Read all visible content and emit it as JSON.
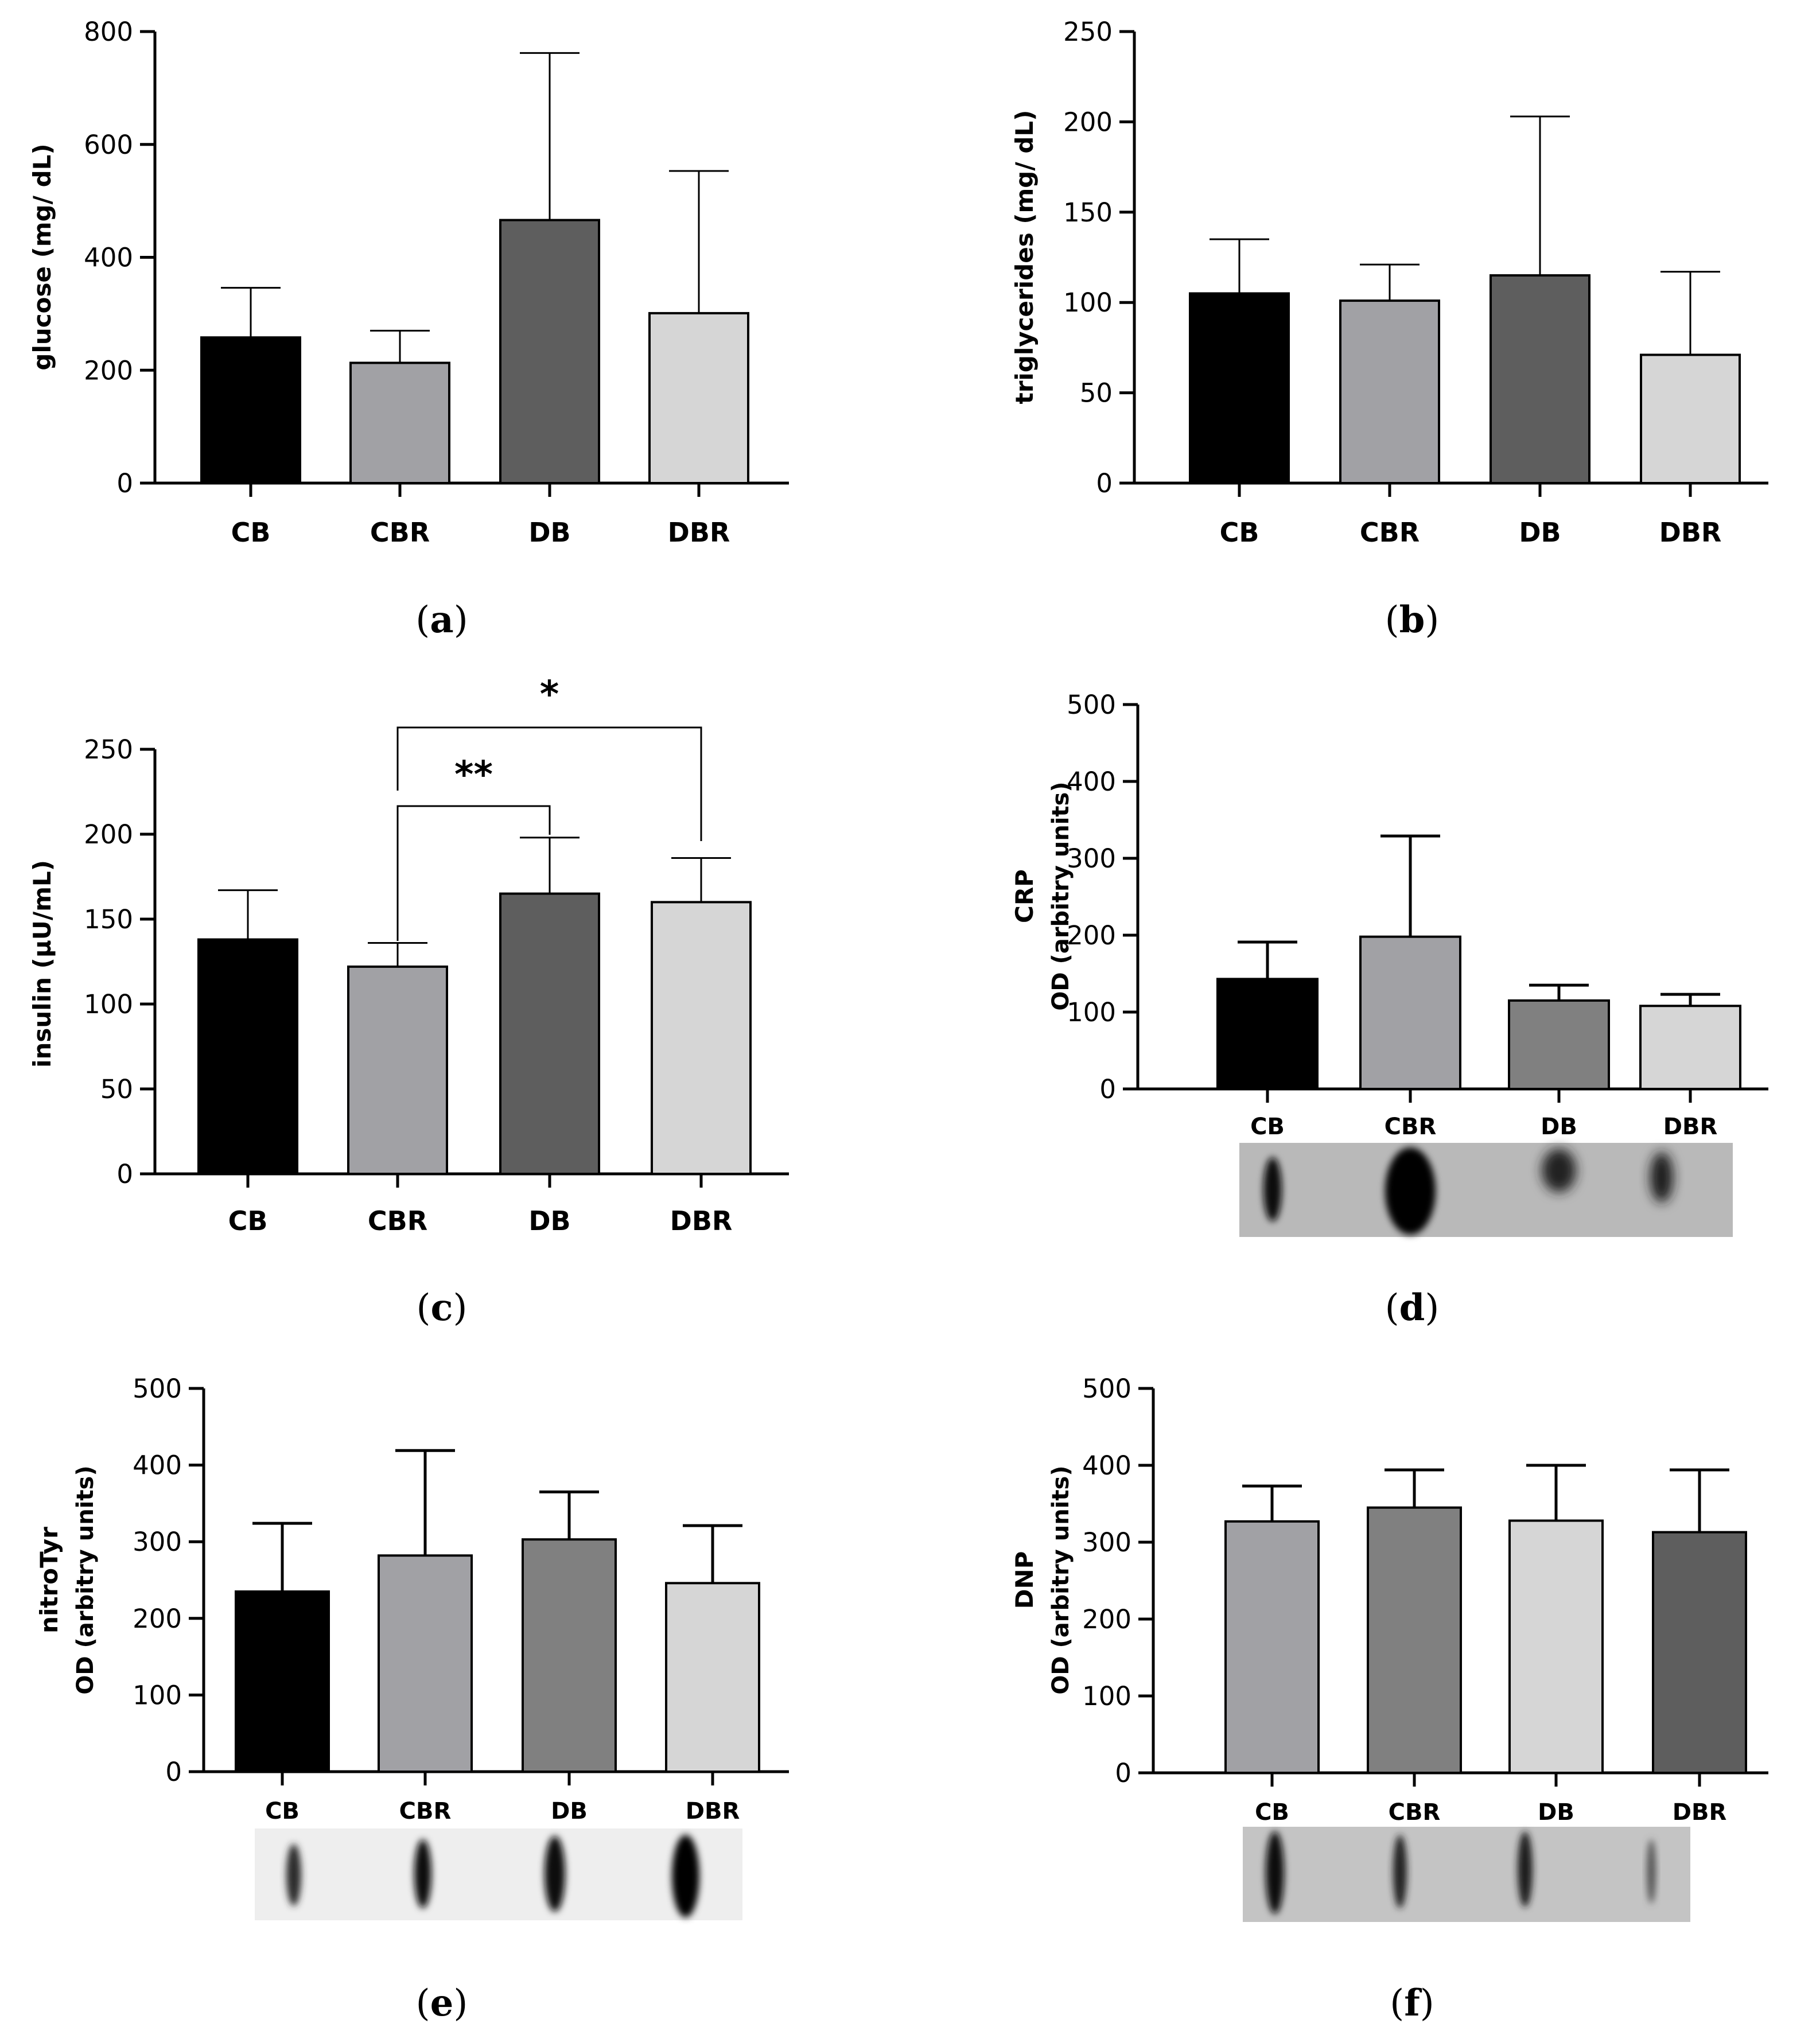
{
  "chart_data": [
    {
      "id": "a",
      "type": "bar",
      "panel_label": "a",
      "ylabel": "glucose (mg/ dL)",
      "categories": [
        "CB",
        "CBR",
        "DB",
        "DBR"
      ],
      "values": [
        258,
        213,
        466,
        301
      ],
      "errors": [
        88,
        57,
        296,
        252
      ],
      "ylim": [
        0,
        800
      ],
      "yticks": [
        0,
        200,
        400,
        600,
        800
      ],
      "colors": [
        "#000000",
        "#a1a1a5",
        "#5e5e5e",
        "#d6d6d6"
      ]
    },
    {
      "id": "b",
      "type": "bar",
      "panel_label": "b",
      "ylabel": "triglycerides (mg/ dL)",
      "categories": [
        "CB",
        "CBR",
        "DB",
        "DBR"
      ],
      "values": [
        105,
        101,
        115,
        71
      ],
      "errors": [
        30,
        20,
        88,
        46
      ],
      "ylim": [
        0,
        250
      ],
      "yticks": [
        0,
        50,
        100,
        150,
        200,
        250
      ],
      "colors": [
        "#000000",
        "#a1a1a5",
        "#5e5e5e",
        "#d6d6d6"
      ]
    },
    {
      "id": "c",
      "type": "bar",
      "panel_label": "c",
      "ylabel": "insulin (µU/mL)",
      "categories": [
        "CB",
        "CBR",
        "DB",
        "DBR"
      ],
      "values": [
        138,
        122,
        165,
        160
      ],
      "errors": [
        29,
        14,
        33,
        26
      ],
      "ylim": [
        0,
        250
      ],
      "yticks": [
        0,
        50,
        100,
        150,
        200,
        250
      ],
      "colors": [
        "#000000",
        "#a1a1a5",
        "#5e5e5e",
        "#d6d6d6"
      ],
      "significance": [
        {
          "from": "CBR",
          "to": "DB",
          "label": "**"
        },
        {
          "from": "CBR",
          "to": "DBR",
          "label": "*"
        }
      ]
    },
    {
      "id": "d",
      "type": "bar",
      "panel_label": "d",
      "ylabel": "CRP",
      "ylabel2": "OD (arbitry units)",
      "categories": [
        "CB",
        "CBR",
        "DB",
        "DBR"
      ],
      "values": [
        143,
        198,
        115,
        108
      ],
      "errors": [
        48,
        131,
        20,
        15
      ],
      "ylim": [
        0,
        500
      ],
      "yticks": [
        0,
        100,
        200,
        300,
        400,
        500
      ],
      "colors": [
        "#000000",
        "#a1a1a5",
        "#808080",
        "#d6d6d6"
      ]
    },
    {
      "id": "e",
      "type": "bar",
      "panel_label": "e",
      "ylabel": "nitroTyr",
      "ylabel2": "OD (arbitry units)",
      "categories": [
        "CB",
        "CBR",
        "DB",
        "DBR"
      ],
      "values": [
        235,
        282,
        303,
        246
      ],
      "errors": [
        89,
        137,
        62,
        75
      ],
      "ylim": [
        0,
        500
      ],
      "yticks": [
        0,
        100,
        200,
        300,
        400,
        500
      ],
      "colors": [
        "#000000",
        "#a1a1a5",
        "#808080",
        "#d6d6d6"
      ]
    },
    {
      "id": "f",
      "type": "bar",
      "panel_label": "f",
      "ylabel": "DNP",
      "ylabel2": "OD (arbitry units)",
      "categories": [
        "CB",
        "CBR",
        "DB",
        "DBR"
      ],
      "values": [
        327,
        345,
        328,
        313
      ],
      "errors": [
        46,
        49,
        72,
        81
      ],
      "ylim": [
        0,
        500
      ],
      "yticks": [
        0,
        100,
        200,
        300,
        400,
        500
      ],
      "colors": [
        "#a1a1a5",
        "#808080",
        "#d6d6d6",
        "#5e5e5e"
      ]
    }
  ]
}
